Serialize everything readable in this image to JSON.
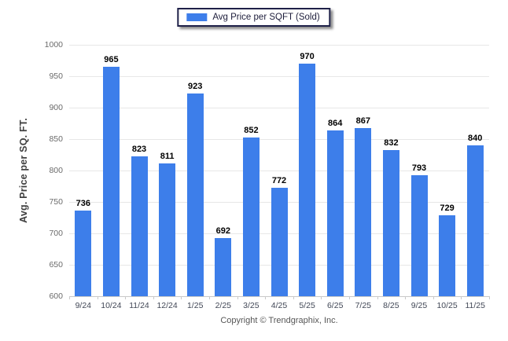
{
  "legend": {
    "label": "Avg Price per SQFT (Sold)",
    "swatch_color": "#3d7eea"
  },
  "footer": {
    "copyright": "Copyright © Trendgraphix, Inc."
  },
  "chart_data": {
    "type": "bar",
    "title": "",
    "xlabel": "",
    "ylabel": "Avg. Price per SQ. FT.",
    "categories": [
      "9/24",
      "10/24",
      "11/24",
      "12/24",
      "1/25",
      "2/25",
      "3/25",
      "4/25",
      "5/25",
      "6/25",
      "7/25",
      "8/25",
      "9/25",
      "10/25",
      "11/25"
    ],
    "values": [
      736,
      965,
      823,
      811,
      923,
      692,
      852,
      772,
      970,
      864,
      867,
      832,
      793,
      729,
      840
    ],
    "ylim": [
      600,
      1000
    ],
    "ytick_step": 50,
    "grid": "horizontal",
    "legend_position": "top-center",
    "bar_color": "#3d7eea",
    "value_labels": true
  }
}
